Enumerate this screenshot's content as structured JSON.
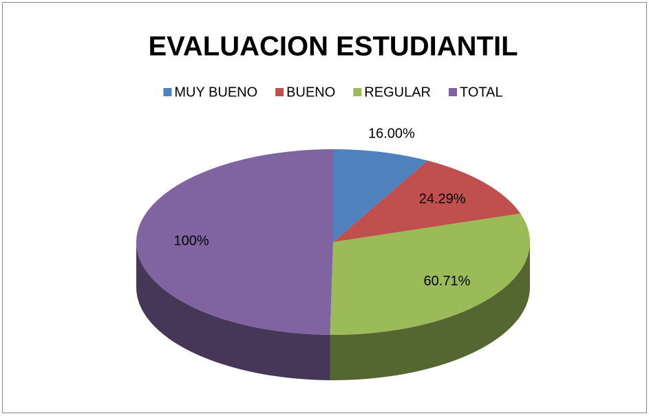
{
  "chart_data": {
    "type": "pie",
    "title": "EVALUACION ESTUDIANTIL",
    "categories": [
      "MUY BUENO",
      "BUENO",
      "REGULAR",
      "TOTAL"
    ],
    "values": [
      16,
      24.29,
      60.71,
      100
    ],
    "value_labels": [
      "16.00%",
      "24.29%",
      "60.71%",
      "100%"
    ],
    "colors": [
      "#4f81bd",
      "#c0504d",
      "#9bbb59",
      "#8064a2"
    ],
    "legend": "top"
  }
}
